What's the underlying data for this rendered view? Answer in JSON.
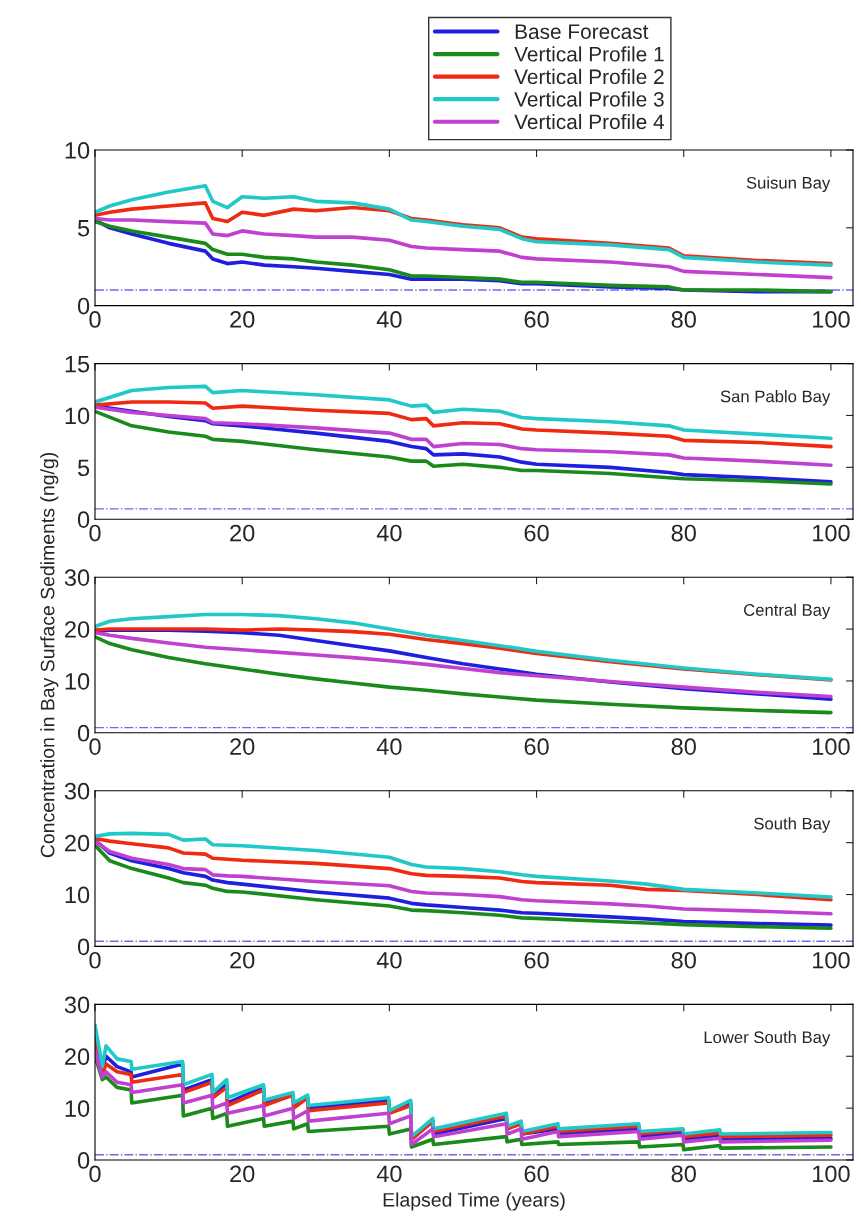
{
  "chart_data": [
    {
      "type": "line",
      "annotations": [
        "Suisun Bay"
      ],
      "legend": "top",
      "xlim": [
        0,
        103
      ],
      "xticks": [
        0,
        20,
        40,
        60,
        80,
        100
      ],
      "ylim": [
        0,
        10
      ],
      "yticks": [
        0,
        5,
        10
      ],
      "x": [
        0,
        2,
        5,
        10,
        15,
        16,
        18,
        20,
        23,
        27,
        30,
        35,
        40,
        43,
        45,
        50,
        55,
        58,
        60,
        70,
        78,
        80,
        90,
        100
      ],
      "ref_lines": [
        {
          "axis": "y",
          "value": 1,
          "color": "#6a6af0",
          "line_style": "dashdot"
        }
      ],
      "series": [
        {
          "name": "Base Forecast",
          "color": "#1f1fe0",
          "values": [
            5.5,
            5.0,
            4.6,
            4.0,
            3.5,
            3.0,
            2.7,
            2.8,
            2.6,
            2.5,
            2.4,
            2.2,
            2.0,
            1.7,
            1.7,
            1.7,
            1.6,
            1.4,
            1.4,
            1.2,
            1.1,
            1.0,
            0.9,
            0.9
          ]
        },
        {
          "name": "Vertical Profile 1",
          "color": "#1a8a1a",
          "values": [
            5.4,
            5.1,
            4.8,
            4.4,
            4.0,
            3.6,
            3.3,
            3.3,
            3.1,
            3.0,
            2.8,
            2.6,
            2.3,
            1.9,
            1.9,
            1.8,
            1.7,
            1.5,
            1.5,
            1.3,
            1.2,
            1.0,
            1.0,
            0.9
          ]
        },
        {
          "name": "Vertical Profile 2",
          "color": "#f02a10",
          "values": [
            5.8,
            6.0,
            6.2,
            6.4,
            6.6,
            5.6,
            5.4,
            6.0,
            5.8,
            6.2,
            6.1,
            6.3,
            6.1,
            5.6,
            5.5,
            5.2,
            5.0,
            4.4,
            4.3,
            4.0,
            3.7,
            3.2,
            2.9,
            2.7
          ]
        },
        {
          "name": "Vertical Profile 3",
          "color": "#20c8c8",
          "values": [
            6.0,
            6.4,
            6.8,
            7.3,
            7.7,
            6.7,
            6.3,
            7.0,
            6.9,
            7.0,
            6.7,
            6.6,
            6.2,
            5.5,
            5.4,
            5.1,
            4.9,
            4.3,
            4.1,
            3.9,
            3.6,
            3.1,
            2.8,
            2.6
          ]
        },
        {
          "name": "Vertical Profile 4",
          "color": "#c040d0",
          "values": [
            5.6,
            5.5,
            5.5,
            5.4,
            5.3,
            4.6,
            4.5,
            4.8,
            4.6,
            4.5,
            4.4,
            4.4,
            4.2,
            3.8,
            3.7,
            3.6,
            3.5,
            3.1,
            3.0,
            2.8,
            2.5,
            2.2,
            2.0,
            1.8
          ]
        }
      ]
    },
    {
      "type": "line",
      "annotations": [
        "San Pablo Bay"
      ],
      "xlim": [
        0,
        103
      ],
      "xticks": [
        0,
        20,
        40,
        60,
        80,
        100
      ],
      "ylim": [
        0,
        15
      ],
      "yticks": [
        0,
        5,
        10,
        15
      ],
      "x": [
        0,
        5,
        10,
        15,
        16,
        20,
        30,
        40,
        43,
        45,
        46,
        50,
        55,
        58,
        60,
        70,
        78,
        80,
        90,
        100
      ],
      "ref_lines": [
        {
          "axis": "y",
          "value": 1,
          "color": "#6a6af0",
          "line_style": "dashdot"
        }
      ],
      "series": [
        {
          "color": "#1f1fe0",
          "values": [
            10.9,
            10.4,
            9.9,
            9.5,
            9.2,
            9.0,
            8.3,
            7.5,
            7.0,
            6.8,
            6.2,
            6.3,
            6.0,
            5.5,
            5.3,
            5.0,
            4.5,
            4.3,
            4.0,
            3.6
          ]
        },
        {
          "color": "#1a8a1a",
          "values": [
            10.4,
            9.0,
            8.4,
            8.0,
            7.7,
            7.5,
            6.7,
            6.0,
            5.6,
            5.6,
            5.1,
            5.3,
            5.0,
            4.7,
            4.7,
            4.4,
            4.0,
            3.9,
            3.7,
            3.4
          ]
        },
        {
          "color": "#f02a10",
          "values": [
            11.0,
            11.3,
            11.3,
            11.2,
            10.7,
            10.9,
            10.5,
            10.2,
            9.6,
            9.7,
            9.0,
            9.3,
            9.2,
            8.7,
            8.6,
            8.3,
            8.0,
            7.6,
            7.4,
            7.0
          ]
        },
        {
          "color": "#20c8c8",
          "values": [
            11.3,
            12.4,
            12.7,
            12.8,
            12.2,
            12.4,
            12.0,
            11.5,
            10.9,
            11.0,
            10.3,
            10.6,
            10.4,
            9.8,
            9.7,
            9.4,
            9.0,
            8.6,
            8.2,
            7.8
          ]
        },
        {
          "color": "#c040d0",
          "values": [
            10.8,
            10.3,
            10.0,
            9.7,
            9.3,
            9.2,
            8.8,
            8.3,
            7.7,
            7.7,
            7.0,
            7.3,
            7.2,
            6.8,
            6.7,
            6.5,
            6.2,
            5.9,
            5.6,
            5.2
          ]
        }
      ]
    },
    {
      "type": "line",
      "annotations": [
        "Central Bay"
      ],
      "ylabel": "Concentration in Bay Surface Sediments (ng/g)",
      "xlim": [
        0,
        103
      ],
      "xticks": [
        0,
        20,
        40,
        60,
        80,
        100
      ],
      "ylim": [
        0,
        30
      ],
      "yticks": [
        0,
        10,
        20,
        30
      ],
      "x": [
        0,
        2,
        5,
        10,
        15,
        20,
        25,
        30,
        35,
        40,
        45,
        50,
        55,
        60,
        70,
        80,
        90,
        100
      ],
      "ref_lines": [
        {
          "axis": "y",
          "value": 1,
          "color": "#6a6af0",
          "line_style": "dashdot"
        }
      ],
      "series": [
        {
          "color": "#1f1fe0",
          "values": [
            19.5,
            19.8,
            19.8,
            19.8,
            19.6,
            19.3,
            18.8,
            17.8,
            16.8,
            15.8,
            14.5,
            13.3,
            12.3,
            11.3,
            9.8,
            8.5,
            7.5,
            6.5
          ]
        },
        {
          "color": "#1a8a1a",
          "values": [
            18.5,
            17.2,
            16.0,
            14.5,
            13.3,
            12.3,
            11.3,
            10.4,
            9.6,
            8.8,
            8.2,
            7.5,
            6.9,
            6.3,
            5.5,
            4.8,
            4.3,
            3.9
          ]
        },
        {
          "color": "#f02a10",
          "values": [
            19.8,
            20.0,
            20.0,
            20.0,
            20.0,
            19.8,
            20.0,
            19.8,
            19.5,
            19.0,
            18.0,
            17.2,
            16.3,
            15.3,
            13.7,
            12.3,
            11.2,
            10.2
          ]
        },
        {
          "color": "#20c8c8",
          "values": [
            20.5,
            21.5,
            22.0,
            22.4,
            22.8,
            22.8,
            22.6,
            22.0,
            21.2,
            20.0,
            18.8,
            17.8,
            16.8,
            15.7,
            14.0,
            12.5,
            11.3,
            10.3
          ]
        },
        {
          "color": "#c040d0",
          "values": [
            19.3,
            18.8,
            18.2,
            17.3,
            16.5,
            16.0,
            15.5,
            15.0,
            14.5,
            13.9,
            13.2,
            12.4,
            11.6,
            11.0,
            9.9,
            8.8,
            7.8,
            7.0
          ]
        }
      ]
    },
    {
      "type": "line",
      "annotations": [
        "South Bay"
      ],
      "xlim": [
        0,
        103
      ],
      "xticks": [
        0,
        20,
        40,
        60,
        80,
        100
      ],
      "ylim": [
        0,
        30
      ],
      "yticks": [
        0,
        10,
        20,
        30
      ],
      "x": [
        0,
        2,
        5,
        10,
        12,
        15,
        16,
        18,
        20,
        30,
        40,
        43,
        45,
        50,
        55,
        58,
        60,
        70,
        75,
        80,
        90,
        100
      ],
      "ref_lines": [
        {
          "axis": "y",
          "value": 1,
          "color": "#6a6af0",
          "line_style": "dashdot"
        }
      ],
      "series": [
        {
          "color": "#1f1fe0",
          "values": [
            20.5,
            18.0,
            16.5,
            15.0,
            14.2,
            13.5,
            12.8,
            12.3,
            12.0,
            10.5,
            9.3,
            8.3,
            8.0,
            7.5,
            7.0,
            6.5,
            6.4,
            5.7,
            5.3,
            4.8,
            4.4,
            4.1
          ]
        },
        {
          "color": "#1a8a1a",
          "values": [
            19.5,
            16.5,
            15.0,
            13.2,
            12.3,
            11.8,
            11.2,
            10.6,
            10.5,
            9.0,
            7.8,
            7.0,
            6.9,
            6.5,
            6.0,
            5.5,
            5.4,
            4.8,
            4.5,
            4.2,
            3.8,
            3.5
          ]
        },
        {
          "color": "#f02a10",
          "values": [
            20.8,
            20.3,
            19.8,
            19.0,
            18.0,
            17.8,
            17.0,
            16.8,
            16.6,
            16.0,
            15.0,
            14.0,
            13.7,
            13.5,
            13.2,
            12.5,
            12.3,
            11.8,
            11.0,
            10.8,
            10.0,
            9.0
          ]
        },
        {
          "color": "#20c8c8",
          "values": [
            21.2,
            21.7,
            21.8,
            21.6,
            20.5,
            20.7,
            19.6,
            19.5,
            19.4,
            18.5,
            17.2,
            15.8,
            15.3,
            15.0,
            14.4,
            13.8,
            13.5,
            12.6,
            12.0,
            11.0,
            10.3,
            9.5
          ]
        },
        {
          "color": "#c040d0",
          "values": [
            20.3,
            18.3,
            17.0,
            15.8,
            15.0,
            14.8,
            13.8,
            13.6,
            13.5,
            12.5,
            11.7,
            10.6,
            10.3,
            10.0,
            9.6,
            9.0,
            8.8,
            8.2,
            7.8,
            7.2,
            6.8,
            6.3
          ]
        }
      ]
    },
    {
      "type": "line",
      "annotations": [
        "Lower South Bay"
      ],
      "xlabel": "Elapsed Time (years)",
      "xlim": [
        0,
        103
      ],
      "xticks": [
        0,
        20,
        40,
        60,
        80,
        100
      ],
      "ylim": [
        0,
        30
      ],
      "yticks": [
        0,
        10,
        20,
        30
      ],
      "x": [
        0,
        1,
        1.5,
        3,
        4.9,
        5,
        11.9,
        12,
        15.9,
        16,
        17.9,
        18,
        22.9,
        23,
        26.9,
        27,
        28.9,
        29,
        39.9,
        40,
        42.9,
        43,
        45.9,
        46,
        55.9,
        56,
        57.9,
        58,
        62.9,
        63,
        73.9,
        74,
        79.9,
        80,
        84.9,
        85,
        100
      ],
      "ref_lines": [
        {
          "axis": "y",
          "value": 1,
          "color": "#6a6af0",
          "line_style": "dashdot"
        }
      ],
      "series": [
        {
          "color": "#1f1fe0",
          "values": [
            24,
            17.5,
            20,
            18,
            17,
            16,
            18.5,
            13.5,
            15.5,
            12.5,
            14.5,
            11,
            14.0,
            11,
            12.5,
            10.5,
            12,
            10,
            11.5,
            9.5,
            11.0,
            4,
            7.5,
            5,
            8,
            6,
            7.3,
            5,
            6,
            5,
            6,
            4.5,
            5.2,
            4,
            4.8,
            4,
            4.2
          ]
        },
        {
          "color": "#1a8a1a",
          "values": [
            20,
            15.5,
            16,
            14,
            13.5,
            11,
            12.5,
            8.5,
            10,
            8,
            9,
            6.5,
            8,
            6.5,
            7.5,
            6,
            7,
            5.5,
            6.5,
            5,
            6,
            2.5,
            4,
            3,
            4.5,
            3.5,
            4,
            3,
            3.5,
            3,
            3.5,
            2.5,
            3,
            2,
            2.8,
            2.3,
            2.5
          ]
        },
        {
          "color": "#f02a10",
          "values": [
            23,
            16.5,
            18.5,
            17,
            16.5,
            15,
            16.5,
            13,
            15,
            12,
            14,
            10.5,
            13.5,
            10.5,
            12.5,
            10,
            12,
            9.5,
            11,
            9,
            10.5,
            4,
            7.5,
            5.5,
            8.5,
            6,
            7,
            5,
            6.5,
            5.5,
            6.5,
            5,
            5.8,
            4.5,
            5.2,
            4.5,
            4.8
          ]
        },
        {
          "color": "#20c8c8",
          "values": [
            26,
            18,
            22,
            19.5,
            19,
            17.5,
            19,
            14.5,
            16.5,
            13,
            15.5,
            12,
            14.5,
            11.5,
            13,
            11,
            12.5,
            10.5,
            12,
            9.5,
            11.5,
            4.5,
            8,
            6,
            9,
            6.5,
            7.5,
            5.5,
            7,
            6,
            7,
            5.5,
            6,
            5,
            5.8,
            5,
            5.3
          ]
        },
        {
          "color": "#c040d0",
          "values": [
            21,
            16,
            17,
            15,
            14.5,
            13,
            14.5,
            11,
            12.5,
            10,
            11,
            9,
            10.5,
            8.5,
            10,
            8,
            9.5,
            7.5,
            9,
            7,
            8.5,
            3,
            6,
            4.5,
            7,
            5,
            6,
            4,
            5.5,
            4.5,
            5.5,
            4,
            4.8,
            3.5,
            4.2,
            3.5,
            3.8
          ]
        }
      ]
    }
  ]
}
